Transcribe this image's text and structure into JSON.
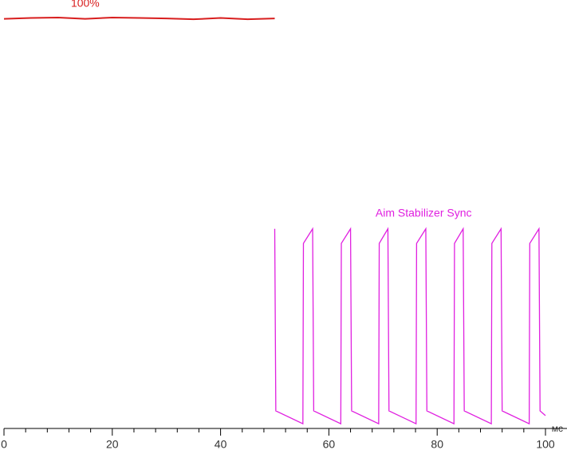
{
  "chart_data": {
    "type": "line",
    "x_label": "мс",
    "xlim": [
      0,
      100
    ],
    "xticks": [
      0,
      20,
      40,
      60,
      80,
      100
    ],
    "xminorticks": [
      4,
      8,
      12,
      16,
      24,
      28,
      32,
      36,
      44,
      48,
      52,
      56,
      64,
      68,
      72,
      76,
      84,
      88,
      92,
      96
    ],
    "ylim": [
      0,
      100
    ],
    "series": [
      {
        "name": "100%",
        "color": "#d81e1e",
        "x": [
          0,
          5,
          10,
          15,
          20,
          25,
          30,
          35,
          40,
          45,
          50
        ],
        "values": [
          95.6,
          95.8,
          95.9,
          95.6,
          95.9,
          95.8,
          95.7,
          95.5,
          95.8,
          95.5,
          95.7
        ]
      },
      {
        "name": "Aim Stabilizer Sync",
        "color": "#e020e0",
        "x": [
          50,
          50.2,
          55.2,
          55.3,
          57.0,
          57.2,
          62.2,
          62.3,
          64.0,
          64.2,
          69.2,
          69.3,
          70.9,
          71.1,
          76.1,
          76.2,
          77.9,
          78.1,
          83.1,
          83.2,
          84.8,
          85.0,
          90.0,
          90.1,
          91.8,
          92.0,
          97.0,
          97.1,
          98.8,
          99.0,
          100
        ],
        "values": [
          46.6,
          4.1,
          1.1,
          43.2,
          46.6,
          4.1,
          1.1,
          43.2,
          46.6,
          4.1,
          1.1,
          43.2,
          46.6,
          4.1,
          1.1,
          43.2,
          46.6,
          4.1,
          1.1,
          43.2,
          46.6,
          4.1,
          1.1,
          43.2,
          46.6,
          4.1,
          1.1,
          43.2,
          46.6,
          4.1,
          3.0
        ]
      }
    ]
  }
}
